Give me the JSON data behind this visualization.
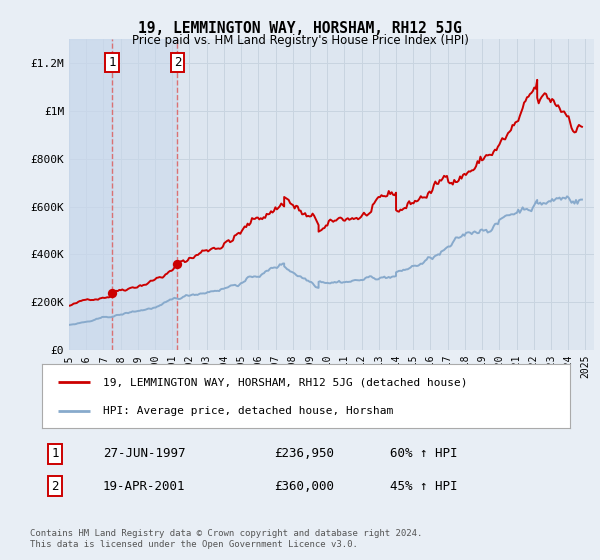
{
  "title": "19, LEMMINGTON WAY, HORSHAM, RH12 5JG",
  "subtitle": "Price paid vs. HM Land Registry's House Price Index (HPI)",
  "background_color": "#e8eef5",
  "plot_bg_color": "#dde6f0",
  "ylabel_ticks": [
    "£0",
    "£200K",
    "£400K",
    "£600K",
    "£800K",
    "£1M",
    "£1.2M"
  ],
  "ytick_vals": [
    0,
    200000,
    400000,
    600000,
    800000,
    1000000,
    1200000
  ],
  "ylim": [
    0,
    1300000
  ],
  "xlim_start": 1995.0,
  "xlim_end": 2025.5,
  "purchase1_date": 1997.49,
  "purchase1_price": 236950,
  "purchase2_date": 2001.3,
  "purchase2_price": 360000,
  "red_line_color": "#cc0000",
  "blue_line_color": "#88aacc",
  "legend_label_red": "19, LEMMINGTON WAY, HORSHAM, RH12 5JG (detached house)",
  "legend_label_blue": "HPI: Average price, detached house, Horsham",
  "annotation1_label": "1",
  "annotation2_label": "2",
  "table_row1": [
    "1",
    "27-JUN-1997",
    "£236,950",
    "60% ↑ HPI"
  ],
  "table_row2": [
    "2",
    "19-APR-2001",
    "£360,000",
    "45% ↑ HPI"
  ],
  "footer": "Contains HM Land Registry data © Crown copyright and database right 2024.\nThis data is licensed under the Open Government Licence v3.0.",
  "grid_color": "#c8d4e0",
  "dashed_line_color": "#dd6666",
  "shade_color": "#c8d8ec",
  "legend_border_color": "#aaaaaa",
  "annotation_border_color": "#cc0000"
}
